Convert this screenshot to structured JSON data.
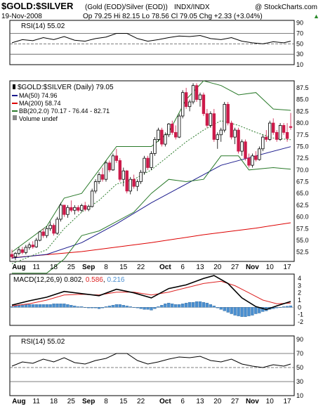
{
  "header": {
    "symbol": "$GOLD:$SILVER",
    "description": "(Gold (EOD)/Silver (EOD))",
    "exchange": "INDX/INDX",
    "watermark": "@ StockCharts.com",
    "date": "19-Nov-2008",
    "ohlc": "Op 79.25  Hi 82.15  Lo 78.56  Cl 79.05  Chg +2.33 (+3.04%)",
    "ohlc_arrow": "▲"
  },
  "panels": {
    "rsi_top_label": "RSI(14) 55.02",
    "price_label": "$GOLD:$SILVER (Daily) 79.05",
    "legend": {
      "ma50": "MA(50) 74.96",
      "ma200": "MA(200) 58.74",
      "bb": "BB(20,2.0) 70.17 - 76.44 - 82.71",
      "volume": "Volume undef"
    },
    "macd_label_prefix": "MACD(12,26,9)",
    "macd_v1": "0.802",
    "macd_v2": "0.586",
    "macd_v3": "0.216",
    "rsi_bottom_label": "RSI(14) 55.02"
  },
  "colors": {
    "up": "#000000",
    "down": "#cc1a4a",
    "ma50": "#1a1a8c",
    "ma200": "#dd0000",
    "bb": "#2a7a2a",
    "macd": "#000000",
    "signal": "#dd2222",
    "hist": "#4a8fd0",
    "rsi_fill": "#4a8a4a"
  },
  "chart_data": {
    "type": "candlestick",
    "x_tick_labels": [
      "Aug",
      "11",
      "18",
      "25",
      "Sep",
      "8",
      "15",
      "22",
      "Oct",
      "6",
      "13",
      "20",
      "27",
      "Nov",
      "10",
      "17"
    ],
    "x_tick_days": [
      2,
      7,
      12,
      17,
      22,
      27,
      32,
      37,
      44,
      49,
      54,
      59,
      64,
      69,
      74,
      79
    ],
    "price_ticks": [
      "87.5",
      "85.0",
      "82.5",
      "80.0",
      "77.5",
      "75.0",
      "72.5",
      "70.0",
      "67.5",
      "65.0",
      "62.5",
      "60.0",
      "57.5",
      "55.0",
      "52.5"
    ],
    "price_ylim": [
      50.5,
      89.0
    ],
    "rsi_ticks": [
      "90",
      "70",
      "50",
      "30",
      "10"
    ],
    "rsi_ylim": [
      10,
      95
    ],
    "rsi_levels": [
      70,
      50,
      30
    ],
    "macd_ticks": [
      "4",
      "3",
      "2",
      "1",
      "0",
      "-1",
      "-2"
    ],
    "macd_ylim": [
      -2.5,
      4.6
    ],
    "candles": [
      [
        52.0,
        53.0,
        51.0,
        51.5
      ],
      [
        51.5,
        52.5,
        50.8,
        52.2
      ],
      [
        52.2,
        53.5,
        51.8,
        53.0
      ],
      [
        53.0,
        53.6,
        52.0,
        52.4
      ],
      [
        52.4,
        54.0,
        52.0,
        53.5
      ],
      [
        53.5,
        54.5,
        53.0,
        54.0
      ],
      [
        54.0,
        54.8,
        53.2,
        53.6
      ],
      [
        53.6,
        55.5,
        53.4,
        55.0
      ],
      [
        55.0,
        57.0,
        54.8,
        56.8
      ],
      [
        56.8,
        57.5,
        55.5,
        56.0
      ],
      [
        56.0,
        58.0,
        55.5,
        57.5
      ],
      [
        57.5,
        59.0,
        57.0,
        58.2
      ],
      [
        58.2,
        58.6,
        56.0,
        56.5
      ],
      [
        56.5,
        60.0,
        56.2,
        59.5
      ],
      [
        59.5,
        63.0,
        59.0,
        62.5
      ],
      [
        62.5,
        62.5,
        60.0,
        60.5
      ],
      [
        60.5,
        62.5,
        59.8,
        62.0
      ],
      [
        62.0,
        63.5,
        61.0,
        61.4
      ],
      [
        61.4,
        62.5,
        60.5,
        62.0
      ],
      [
        62.0,
        62.5,
        61.0,
        61.4
      ],
      [
        61.4,
        62.8,
        61.0,
        62.4
      ],
      [
        62.4,
        63.2,
        61.2,
        61.6
      ],
      [
        61.6,
        62.6,
        61.2,
        62.2
      ],
      [
        62.2,
        66.0,
        62.0,
        65.5
      ],
      [
        65.5,
        68.0,
        65.0,
        67.5
      ],
      [
        67.5,
        69.5,
        67.0,
        69.0
      ],
      [
        69.0,
        70.5,
        67.5,
        68.0
      ],
      [
        68.0,
        72.0,
        67.5,
        71.5
      ],
      [
        71.5,
        72.0,
        69.5,
        70.0
      ],
      [
        70.0,
        73.5,
        69.8,
        73.0
      ],
      [
        73.0,
        74.5,
        71.5,
        72.0
      ],
      [
        72.0,
        72.5,
        67.5,
        68.0
      ],
      [
        68.0,
        70.5,
        66.5,
        69.8
      ],
      [
        69.8,
        70.0,
        65.0,
        65.5
      ],
      [
        65.5,
        68.5,
        64.8,
        68.0
      ],
      [
        68.0,
        69.0,
        66.0,
        66.5
      ],
      [
        66.5,
        68.0,
        65.5,
        67.5
      ],
      [
        67.5,
        70.0,
        67.0,
        69.5
      ],
      [
        69.5,
        73.0,
        69.0,
        72.5
      ],
      [
        72.5,
        73.0,
        70.0,
        70.5
      ],
      [
        70.5,
        74.0,
        70.0,
        73.5
      ],
      [
        73.5,
        77.0,
        73.0,
        76.5
      ],
      [
        76.5,
        79.0,
        76.0,
        78.5
      ],
      [
        78.5,
        79.0,
        75.0,
        75.5
      ],
      [
        75.5,
        78.0,
        75.0,
        77.5
      ],
      [
        77.5,
        80.0,
        77.0,
        79.8
      ],
      [
        79.8,
        80.5,
        77.5,
        78.0
      ],
      [
        78.0,
        79.5,
        76.5,
        77.0
      ],
      [
        77.0,
        82.0,
        76.8,
        81.5
      ],
      [
        81.5,
        87.0,
        81.0,
        86.5
      ],
      [
        86.5,
        87.5,
        83.0,
        83.5
      ],
      [
        83.5,
        85.0,
        82.5,
        84.5
      ],
      [
        84.5,
        88.5,
        84.0,
        88.0
      ],
      [
        88.0,
        88.5,
        84.5,
        85.0
      ],
      [
        85.0,
        86.5,
        83.5,
        86.0
      ],
      [
        86.0,
        86.5,
        81.5,
        82.0
      ],
      [
        82.0,
        83.0,
        79.0,
        79.5
      ],
      [
        79.5,
        82.5,
        79.0,
        82.0
      ],
      [
        82.0,
        83.0,
        76.0,
        76.5
      ],
      [
        76.5,
        78.0,
        74.5,
        77.5
      ],
      [
        77.5,
        79.0,
        76.0,
        78.5
      ],
      [
        78.5,
        84.5,
        78.0,
        84.0
      ],
      [
        84.0,
        84.5,
        79.5,
        80.0
      ],
      [
        80.0,
        80.5,
        76.5,
        77.0
      ],
      [
        77.0,
        79.0,
        75.5,
        78.5
      ],
      [
        78.5,
        79.0,
        73.5,
        74.0
      ],
      [
        74.0,
        76.5,
        73.0,
        76.0
      ],
      [
        76.0,
        76.5,
        72.0,
        72.5
      ],
      [
        72.5,
        73.5,
        70.5,
        71.0
      ],
      [
        71.0,
        73.5,
        70.5,
        73.0
      ],
      [
        73.0,
        74.0,
        71.8,
        72.2
      ],
      [
        72.2,
        75.0,
        72.0,
        74.5
      ],
      [
        74.5,
        77.5,
        74.0,
        77.0
      ],
      [
        77.0,
        78.5,
        76.0,
        76.5
      ],
      [
        76.5,
        80.5,
        76.2,
        80.0
      ],
      [
        80.0,
        81.0,
        77.5,
        78.0
      ],
      [
        78.0,
        78.5,
        76.0,
        76.5
      ],
      [
        76.5,
        80.0,
        76.2,
        79.5
      ],
      [
        79.5,
        80.0,
        77.5,
        78.0
      ],
      [
        78.0,
        80.0,
        76.0,
        76.7
      ],
      [
        79.25,
        82.15,
        78.56,
        79.05
      ]
    ],
    "ma50": [
      [
        0,
        51.2
      ],
      [
        10,
        52.0
      ],
      [
        20,
        54.5
      ],
      [
        30,
        58.5
      ],
      [
        40,
        63.0
      ],
      [
        50,
        67.0
      ],
      [
        60,
        71.0
      ],
      [
        70,
        73.0
      ],
      [
        80,
        74.96
      ]
    ],
    "ma200": [
      [
        0,
        51.3
      ],
      [
        20,
        52.6
      ],
      [
        40,
        54.5
      ],
      [
        55,
        56.2
      ],
      [
        70,
        57.6
      ],
      [
        80,
        58.74
      ]
    ],
    "bb_upper": [
      [
        0,
        52.5
      ],
      [
        10,
        58.0
      ],
      [
        15,
        64.0
      ],
      [
        20,
        65.0
      ],
      [
        25,
        70.0
      ],
      [
        30,
        75.0
      ],
      [
        35,
        75.0
      ],
      [
        40,
        75.0
      ],
      [
        45,
        78.0
      ],
      [
        50,
        85.0
      ],
      [
        55,
        89.0
      ],
      [
        60,
        88.0
      ],
      [
        65,
        86.0
      ],
      [
        70,
        86.5
      ],
      [
        75,
        83.0
      ],
      [
        80,
        82.71
      ]
    ],
    "bb_mid": [
      [
        0,
        50.0
      ],
      [
        10,
        53.0
      ],
      [
        15,
        57.5
      ],
      [
        20,
        61.0
      ],
      [
        25,
        63.5
      ],
      [
        30,
        67.0
      ],
      [
        35,
        68.0
      ],
      [
        40,
        70.0
      ],
      [
        45,
        73.0
      ],
      [
        50,
        76.0
      ],
      [
        55,
        78.5
      ],
      [
        60,
        80.5
      ],
      [
        65,
        79.5
      ],
      [
        70,
        78.0
      ],
      [
        75,
        76.8
      ],
      [
        80,
        76.44
      ]
    ],
    "bb_lower": [
      [
        0,
        48.0
      ],
      [
        10,
        48.0
      ],
      [
        15,
        51.0
      ],
      [
        20,
        56.0
      ],
      [
        25,
        57.0
      ],
      [
        30,
        59.0
      ],
      [
        35,
        61.0
      ],
      [
        40,
        65.0
      ],
      [
        45,
        68.0
      ],
      [
        50,
        67.5
      ],
      [
        55,
        68.0
      ],
      [
        60,
        73.0
      ],
      [
        65,
        73.0
      ],
      [
        68,
        70.0
      ],
      [
        75,
        70.5
      ],
      [
        80,
        70.17
      ]
    ],
    "rsi": [
      [
        0,
        52
      ],
      [
        3,
        58
      ],
      [
        6,
        56
      ],
      [
        9,
        62
      ],
      [
        12,
        58
      ],
      [
        15,
        64
      ],
      [
        18,
        57
      ],
      [
        21,
        55
      ],
      [
        24,
        60
      ],
      [
        27,
        63
      ],
      [
        30,
        70
      ],
      [
        33,
        70
      ],
      [
        36,
        60
      ],
      [
        39,
        55
      ],
      [
        42,
        58
      ],
      [
        45,
        62
      ],
      [
        48,
        65
      ],
      [
        51,
        64
      ],
      [
        54,
        66
      ],
      [
        57,
        60
      ],
      [
        60,
        58
      ],
      [
        63,
        62
      ],
      [
        66,
        55
      ],
      [
        69,
        52
      ],
      [
        72,
        50
      ],
      [
        75,
        54
      ],
      [
        78,
        52
      ],
      [
        80,
        55.02
      ]
    ],
    "macd": [
      [
        0,
        0.3
      ],
      [
        5,
        0.9
      ],
      [
        10,
        1.4
      ],
      [
        15,
        2.2
      ],
      [
        20,
        1.9
      ],
      [
        25,
        1.6
      ],
      [
        30,
        2.5
      ],
      [
        35,
        2.0
      ],
      [
        40,
        1.3
      ],
      [
        45,
        2.6
      ],
      [
        50,
        3.1
      ],
      [
        55,
        4.0
      ],
      [
        58,
        4.4
      ],
      [
        62,
        3.3
      ],
      [
        66,
        1.3
      ],
      [
        70,
        0.1
      ],
      [
        73,
        -0.3
      ],
      [
        76,
        0.2
      ],
      [
        80,
        0.802
      ]
    ],
    "signal": [
      [
        0,
        0.2
      ],
      [
        5,
        0.5
      ],
      [
        10,
        1.0
      ],
      [
        15,
        1.7
      ],
      [
        20,
        1.8
      ],
      [
        25,
        1.7
      ],
      [
        30,
        2.1
      ],
      [
        35,
        2.1
      ],
      [
        40,
        1.7
      ],
      [
        45,
        2.1
      ],
      [
        50,
        2.7
      ],
      [
        55,
        3.3
      ],
      [
        60,
        3.6
      ],
      [
        64,
        3.0
      ],
      [
        68,
        2.0
      ],
      [
        72,
        1.0
      ],
      [
        76,
        0.5
      ],
      [
        80,
        0.586
      ]
    ],
    "histogram": [
      0.1,
      0.2,
      0.3,
      0.3,
      0.4,
      0.4,
      0.4,
      0.4,
      0.4,
      0.4,
      0.4,
      0.4,
      0.5,
      0.5,
      0.5,
      0.5,
      0.4,
      0.3,
      0.2,
      0.1,
      0.1,
      0.0,
      -0.1,
      -0.1,
      -0.1,
      -0.2,
      -0.1,
      0.1,
      0.2,
      0.3,
      0.4,
      0.4,
      0.3,
      0.2,
      0.1,
      0.0,
      -0.1,
      -0.2,
      -0.3,
      -0.3,
      -0.4,
      -0.2,
      0.1,
      0.3,
      0.5,
      0.6,
      0.5,
      0.4,
      0.4,
      0.5,
      0.6,
      0.7,
      0.7,
      0.8,
      0.8,
      0.7,
      0.6,
      0.4,
      0.2,
      -0.1,
      -0.3,
      -0.5,
      -0.7,
      -0.9,
      -1.1,
      -1.2,
      -1.3,
      -1.3,
      -1.2,
      -1.1,
      -0.9,
      -0.8,
      -0.6,
      -0.5,
      -0.3,
      -0.2,
      -0.1,
      0.0,
      0.1,
      0.15,
      0.216
    ]
  }
}
